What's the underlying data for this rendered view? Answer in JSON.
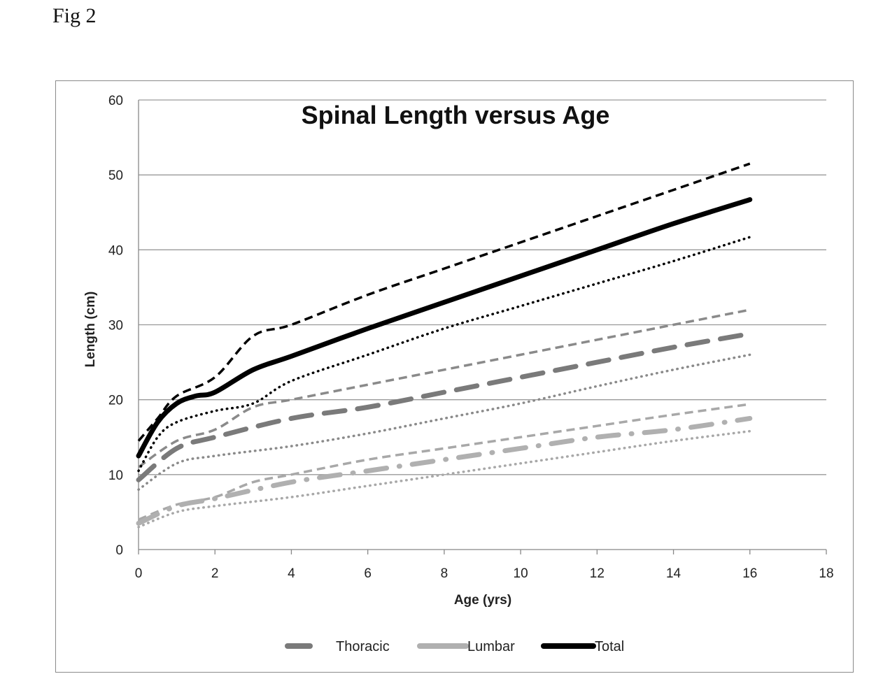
{
  "figure_label": "Fig 2",
  "chart_data": {
    "type": "line",
    "title": "Spinal Length versus Age",
    "xlabel": "Age (yrs)",
    "ylabel": "Length (cm)",
    "xlim": [
      0,
      18
    ],
    "ylim": [
      0,
      60
    ],
    "x_ticks": [
      "0",
      "2",
      "4",
      "6",
      "8",
      "10",
      "12",
      "14",
      "16",
      "18"
    ],
    "y_ticks": [
      "0",
      "10",
      "20",
      "30",
      "40",
      "50",
      "60"
    ],
    "grid": "horizontal",
    "legend_position": "bottom",
    "legend": [
      "Thoracic",
      "Lumbar",
      "Total"
    ],
    "series": [
      {
        "name": "Total",
        "legend": true,
        "color": "#000000",
        "style": "solid",
        "x": [
          0,
          0.5,
          1,
          1.5,
          2,
          3,
          4,
          6,
          8,
          10,
          12,
          14,
          16
        ],
        "y": [
          12.5,
          17,
          19.5,
          20.5,
          21,
          24,
          25.8,
          29.5,
          33,
          36.5,
          40,
          43.5,
          46.7
        ]
      },
      {
        "name": "",
        "legend": false,
        "color": "#000000",
        "style": "dashed",
        "x": [
          0,
          0.5,
          1,
          2,
          3,
          4,
          6,
          8,
          10,
          12,
          14,
          16
        ],
        "y": [
          14.5,
          17.5,
          20.5,
          23,
          28.5,
          30,
          34,
          37.5,
          41,
          44.5,
          48,
          51.5
        ]
      },
      {
        "name": "",
        "legend": false,
        "color": "#000000",
        "style": "dotted",
        "x": [
          0,
          0.5,
          1,
          2,
          3,
          4,
          6,
          8,
          10,
          12,
          14,
          16
        ],
        "y": [
          10.5,
          15,
          17,
          18.5,
          19.5,
          22.5,
          26,
          29.5,
          32.5,
          35.5,
          38.5,
          41.7
        ]
      },
      {
        "name": "Thoracic",
        "legend": true,
        "color": "#7a7a7a",
        "style": "longdash",
        "x": [
          0,
          1,
          2,
          4,
          6,
          8,
          10,
          12,
          14,
          16
        ],
        "y": [
          9.3,
          13.5,
          15,
          17.5,
          19,
          21,
          23,
          25,
          27,
          28.8
        ]
      },
      {
        "name": "",
        "legend": false,
        "color": "#8a8a8a",
        "style": "dashed",
        "x": [
          0,
          1,
          2,
          3,
          4,
          6,
          8,
          10,
          12,
          14,
          16
        ],
        "y": [
          11,
          14.5,
          16,
          19,
          20,
          22,
          24,
          26,
          28,
          30,
          32
        ]
      },
      {
        "name": "",
        "legend": false,
        "color": "#8a8a8a",
        "style": "dotted",
        "x": [
          0,
          1,
          2,
          4,
          6,
          8,
          10,
          12,
          14,
          16
        ],
        "y": [
          8,
          11.5,
          12.5,
          13.8,
          15.5,
          17.5,
          19.5,
          21.8,
          24,
          26
        ]
      },
      {
        "name": "Lumbar",
        "legend": true,
        "color": "#b0b0b0",
        "style": "dashdot",
        "x": [
          0,
          1,
          2,
          4,
          6,
          8,
          10,
          12,
          14,
          16
        ],
        "y": [
          3.5,
          5.8,
          6.8,
          9,
          10.5,
          12,
          13.5,
          15,
          16,
          17.5
        ]
      },
      {
        "name": "",
        "legend": false,
        "color": "#a8a8a8",
        "style": "dashed",
        "x": [
          0,
          1,
          2,
          3,
          4,
          6,
          8,
          10,
          12,
          14,
          16
        ],
        "y": [
          4,
          6,
          7,
          9,
          10,
          12,
          13.5,
          15,
          16.5,
          18,
          19.4
        ]
      },
      {
        "name": "",
        "legend": false,
        "color": "#a8a8a8",
        "style": "dotted",
        "x": [
          0,
          1,
          2,
          4,
          6,
          8,
          10,
          12,
          14,
          16
        ],
        "y": [
          3,
          5,
          5.8,
          7,
          8.5,
          10,
          11.5,
          13,
          14.5,
          15.8
        ]
      }
    ]
  }
}
